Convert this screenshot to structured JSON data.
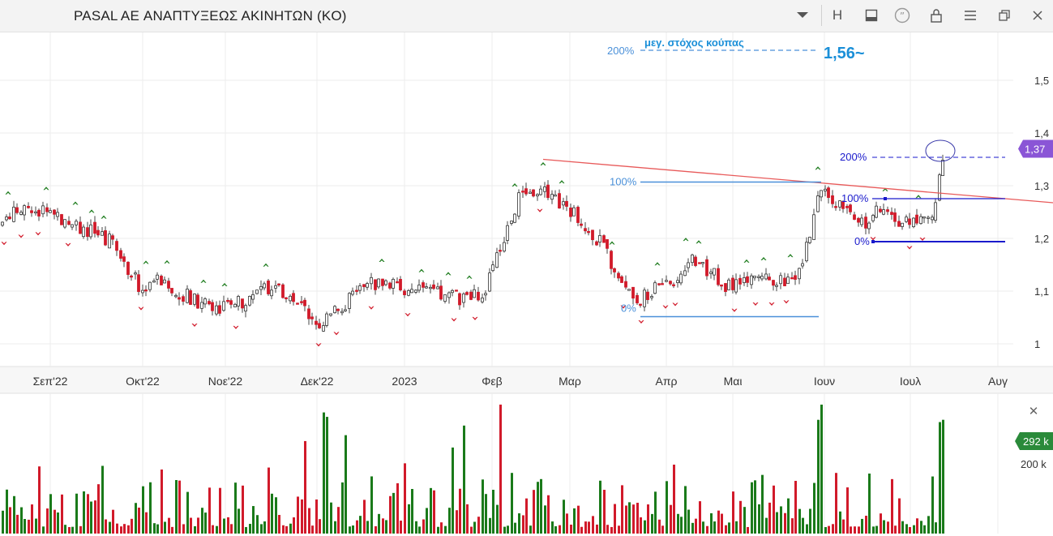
{
  "window": {
    "title": "PASAL AE ΑΝΑΠΤΥΞΕΩΣ ΑΚΙΝΗΤΩΝ  (KO)",
    "buttons": [
      "chevron-down-icon",
      "h-icon",
      "layout-icon",
      "quote-icon",
      "lock-icon",
      "menu-icon",
      "restore-icon",
      "close-icon"
    ],
    "h_label": "H"
  },
  "colors": {
    "up": "#1a7a1a",
    "down": "#d11a2a",
    "trend": "#e85a5a",
    "fib_light": "#4a90d9",
    "fib_dark": "#1a1acc",
    "price_badge": "#8a55d6",
    "vol_badge": "#2a8a3a"
  },
  "chart_data": {
    "type": "candlestick",
    "x_ticks": [
      "Σεπ'22",
      "Οκτ'22",
      "Νοε'22",
      "Δεκ'22",
      "2023",
      "Φεβ",
      "Μαρ",
      "Απρ",
      "Μαι",
      "Ιουν",
      "Ιουλ",
      "Αυγ"
    ],
    "y_ticks": [
      "1,5",
      "1,4",
      "1,3",
      "1,2",
      "1,1",
      "1"
    ],
    "ylim": [
      0.98,
      1.6
    ],
    "last_price_label": "1,37",
    "last_price": 1.37,
    "annotations": {
      "target_text": "μεγ. στόχος κούπας",
      "target_value_text": "1,56~",
      "target_pct": "200%",
      "target_value": 1.56,
      "fib_set_1": {
        "levels": [
          {
            "label": "100%",
            "value": 1.31
          },
          {
            "label": "0%",
            "value": 1.07
          }
        ]
      },
      "fib_set_2": {
        "levels": [
          {
            "label": "200%",
            "value": 1.355
          },
          {
            "label": "100%",
            "value": 1.275
          },
          {
            "label": "0%",
            "value": 1.195
          }
        ]
      },
      "trendline": {
        "from": 1.35,
        "to": 1.28
      }
    },
    "volume": {
      "badge": "292 k",
      "badge_value": 292,
      "tick": "200 k",
      "tick_value": 200
    }
  }
}
